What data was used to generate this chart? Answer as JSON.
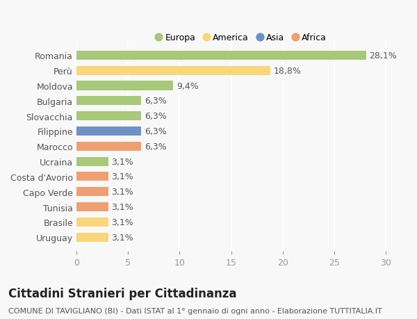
{
  "categories": [
    "Uruguay",
    "Brasile",
    "Tunisia",
    "Capo Verde",
    "Costa d'Avorio",
    "Ucraina",
    "Marocco",
    "Filippine",
    "Slovacchia",
    "Bulgaria",
    "Moldova",
    "Perù",
    "Romania"
  ],
  "values": [
    3.1,
    3.1,
    3.1,
    3.1,
    3.1,
    3.1,
    6.3,
    6.3,
    6.3,
    6.3,
    9.4,
    18.8,
    28.1
  ],
  "labels": [
    "3,1%",
    "3,1%",
    "3,1%",
    "3,1%",
    "3,1%",
    "3,1%",
    "6,3%",
    "6,3%",
    "6,3%",
    "6,3%",
    "9,4%",
    "18,8%",
    "28,1%"
  ],
  "colors": [
    "#f9d67a",
    "#f9d67a",
    "#f0a070",
    "#f0a070",
    "#f0a070",
    "#a8c87a",
    "#f0a070",
    "#7090c8",
    "#a8c87a",
    "#a8c87a",
    "#a8c87a",
    "#f9d67a",
    "#a8c87a"
  ],
  "legend_labels": [
    "Europa",
    "America",
    "Asia",
    "Africa"
  ],
  "legend_colors": [
    "#a8c87a",
    "#f9d67a",
    "#7090c8",
    "#f0a070"
  ],
  "title": "Cittadini Stranieri per Cittadinanza",
  "subtitle": "COMUNE DI TAVIGLIANO (BI) - Dati ISTAT al 1° gennaio di ogni anno - Elaborazione TUTTITALIA.IT",
  "xlim": [
    0,
    32
  ],
  "xticks": [
    0,
    5,
    10,
    15,
    20,
    25,
    30
  ],
  "background_color": "#f8f8f8",
  "grid_color": "#ffffff",
  "label_fontsize": 9,
  "title_fontsize": 12,
  "subtitle_fontsize": 8
}
